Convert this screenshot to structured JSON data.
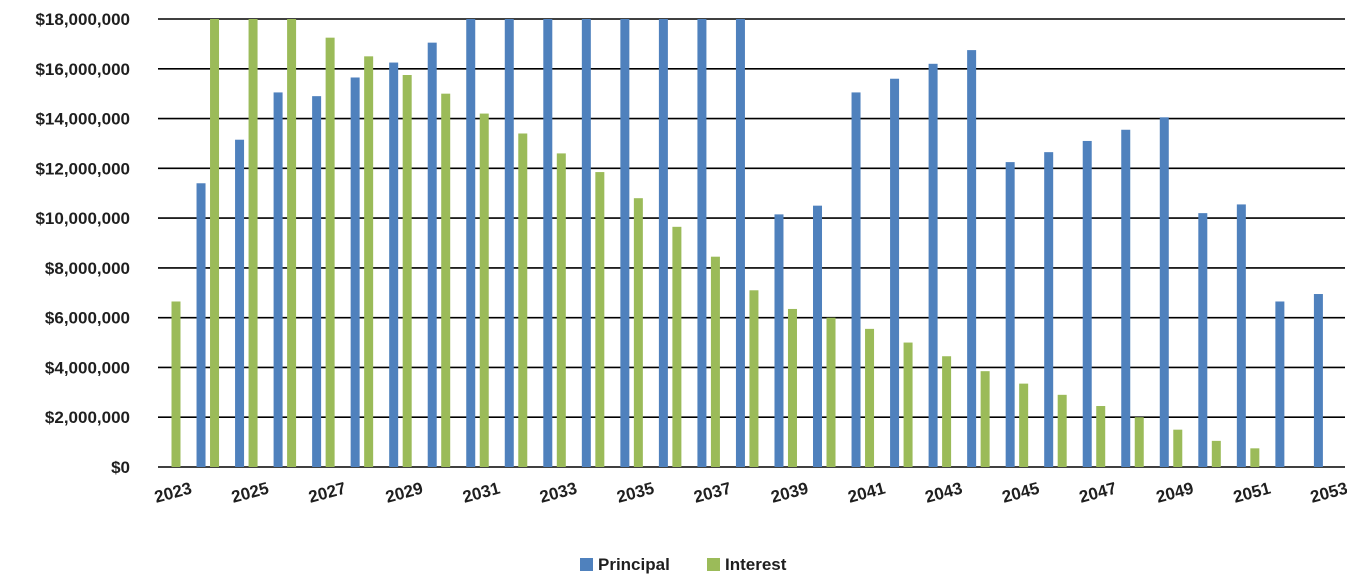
{
  "chart_data": {
    "type": "bar",
    "title": "",
    "xlabel": "",
    "ylabel": "",
    "ylim": [
      0,
      18000000
    ],
    "yticks": [
      "$0",
      "$2,000,000",
      "$4,000,000",
      "$6,000,000",
      "$8,000,000",
      "$10,000,000",
      "$12,000,000",
      "$14,000,000",
      "$16,000,000",
      "$18,000,000"
    ],
    "ytick_values": [
      0,
      2000000,
      4000000,
      6000000,
      8000000,
      10000000,
      12000000,
      14000000,
      16000000,
      18000000
    ],
    "categories": [
      "2023",
      "2024",
      "2025",
      "2026",
      "2027",
      "2028",
      "2029",
      "2030",
      "2031",
      "2032",
      "2033",
      "2034",
      "2035",
      "2036",
      "2037",
      "2038",
      "2039",
      "2040",
      "2041",
      "2042",
      "2043",
      "2044",
      "2045",
      "2046",
      "2047",
      "2048",
      "2049",
      "2050",
      "2051",
      "2052",
      "2053"
    ],
    "x_tick_labels": [
      "2023",
      "2025",
      "2027",
      "2029",
      "2031",
      "2033",
      "2035",
      "2037",
      "2039",
      "2041",
      "2043",
      "2045",
      "2047",
      "2049",
      "2051",
      "2053"
    ],
    "grid": true,
    "legend_position": "bottom-center",
    "series": [
      {
        "name": "Principal",
        "color": "#4f81bd",
        "values": [
          0,
          11400000,
          13150000,
          15050000,
          14900000,
          15650000,
          16250000,
          17050000,
          18000000,
          18000000,
          18000000,
          18000000,
          18000000,
          18000000,
          18000000,
          18000000,
          10150000,
          10500000,
          15050000,
          15600000,
          16200000,
          16750000,
          12250000,
          12650000,
          13100000,
          13550000,
          14050000,
          10200000,
          10550000,
          6650000,
          6950000
        ]
      },
      {
        "name": "Interest",
        "color": "#9bbb59",
        "values": [
          6650000,
          18000000,
          18000000,
          18000000,
          17250000,
          16500000,
          15750000,
          15000000,
          14200000,
          13400000,
          12600000,
          11850000,
          10800000,
          9650000,
          8450000,
          7100000,
          6350000,
          6000000,
          5550000,
          5000000,
          4450000,
          3850000,
          3350000,
          2900000,
          2450000,
          2000000,
          1500000,
          1050000,
          750000,
          0,
          0
        ]
      }
    ]
  }
}
